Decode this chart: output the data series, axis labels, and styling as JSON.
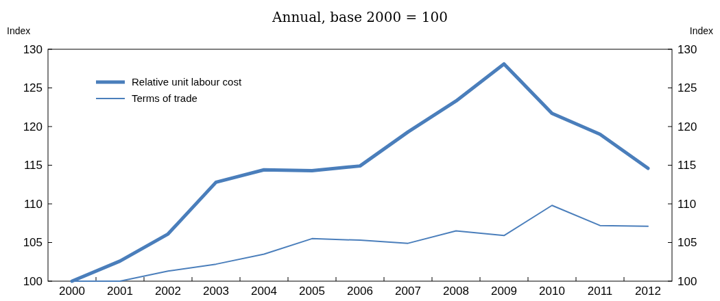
{
  "chart_data": {
    "type": "line",
    "title": "Annual, base 2000 = 100",
    "ylabel": "Index",
    "y2label": "Index",
    "categories": [
      "2000",
      "2001",
      "2002",
      "2003",
      "2004",
      "2005",
      "2006",
      "2007",
      "2008",
      "2009",
      "2010",
      "2011",
      "2012"
    ],
    "series": [
      {
        "name": "Relative unit labour cost",
        "color": "#4a7ebb",
        "values": [
          100,
          102.6,
          106.1,
          112.8,
          114.4,
          114.3,
          114.9,
          119.3,
          123.3,
          128.1,
          121.7,
          119.0,
          114.6
        ]
      },
      {
        "name": "Terms of trade",
        "color": "#4a7ebb",
        "values": [
          100,
          100,
          101.3,
          102.2,
          103.5,
          105.5,
          105.3,
          104.9,
          106.5,
          105.9,
          109.8,
          107.2,
          107.1
        ]
      }
    ],
    "ylim": [
      100,
      130
    ],
    "yticks": [
      100,
      105,
      110,
      115,
      120,
      125,
      130
    ],
    "y2lim": [
      100,
      130
    ],
    "y2ticks": [
      100,
      105,
      110,
      115,
      120,
      125,
      130
    ],
    "grid": false,
    "legend": "top left",
    "line_style": "solid"
  }
}
